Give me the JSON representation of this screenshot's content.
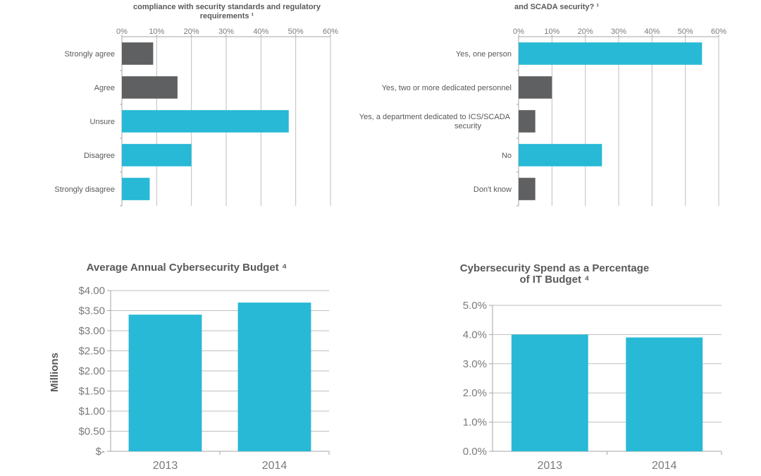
{
  "colors": {
    "teal": "#27b9d6",
    "dark": "#5f6062",
    "grid": "#bfbfbf",
    "text": "#595959"
  },
  "chart_data": [
    {
      "type": "bar",
      "orientation": "horizontal",
      "title_lines": [
        "compliance with security standards and regulatory",
        "requirements ¹"
      ],
      "categories": [
        "Strongly agree",
        "Agree",
        "Unsure",
        "Disagree",
        "Strongly disagree"
      ],
      "values": [
        9,
        16,
        48,
        20,
        8
      ],
      "value_unit": "%",
      "bar_colors": [
        "dark",
        "dark",
        "teal",
        "teal",
        "teal"
      ],
      "xlim": [
        0,
        60
      ],
      "xticks": [
        "0%",
        "10%",
        "20%",
        "30%",
        "40%",
        "50%",
        "60%"
      ],
      "xlabel": "",
      "ylabel": "",
      "grid": true,
      "axis_position": "top"
    },
    {
      "type": "bar",
      "orientation": "horizontal",
      "title_lines": [
        "and SCADA security? ¹"
      ],
      "categories": [
        "Yes, one person",
        "Yes, two or more dedicated personnel",
        "Yes, a department dedicated to ICS/SCADA|security",
        "No",
        "Don't know"
      ],
      "values": [
        55,
        10,
        5,
        25,
        5
      ],
      "value_unit": "%",
      "bar_colors": [
        "teal",
        "dark",
        "dark",
        "teal",
        "dark"
      ],
      "xlim": [
        0,
        60
      ],
      "xticks": [
        "0%",
        "10%",
        "20%",
        "30%",
        "40%",
        "50%",
        "60%"
      ],
      "xlabel": "",
      "ylabel": "",
      "grid": true,
      "axis_position": "top"
    },
    {
      "type": "bar",
      "orientation": "vertical",
      "title_lines": [
        "Average Annual Cybersecurity Budget ⁴"
      ],
      "categories": [
        "2013",
        "2014"
      ],
      "values": [
        3.4,
        3.7
      ],
      "value_unit": "USD millions",
      "ylim": [
        0,
        4
      ],
      "yticks": [
        "$-",
        "$0.50",
        "$1.00",
        "$1.50",
        "$2.00",
        "$2.50",
        "$3.00",
        "$3.50",
        "$4.00"
      ],
      "ylabel": "Millions",
      "xlabel": "",
      "grid": true
    },
    {
      "type": "bar",
      "orientation": "vertical",
      "title_lines": [
        "Cybersecurity Spend as a Percentage",
        "of IT Budget ⁴"
      ],
      "categories": [
        "2013",
        "2014"
      ],
      "values": [
        4.0,
        3.9
      ],
      "value_unit": "%",
      "ylim": [
        0,
        5
      ],
      "yticks": [
        "0.0%",
        "1.0%",
        "2.0%",
        "3.0%",
        "4.0%",
        "5.0%"
      ],
      "ylabel": "",
      "xlabel": "",
      "grid": true
    }
  ]
}
